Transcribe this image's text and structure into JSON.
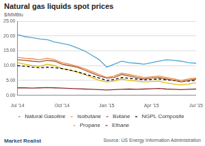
{
  "chart_data": {
    "type": "line",
    "title": "Natural gas liquids spot prices",
    "y_label": "$/MMBtu",
    "source": "Source: US Energy Information Administration",
    "logo_text": "Market Realist",
    "categories": [
      "Jul '14",
      null,
      null,
      null,
      null,
      null,
      "Oct '14",
      null,
      null,
      null,
      null,
      null,
      "Jan '15",
      null,
      null,
      null,
      null,
      null,
      "Apr '15",
      null,
      null,
      null,
      null,
      null,
      "Jul '15"
    ],
    "series": [
      {
        "name": "Natural Gasoline",
        "color": "#4fa3d1",
        "line_style": "solid",
        "values": [
          20.5,
          19.8,
          19.5,
          19.0,
          18.8,
          18.0,
          17.5,
          17.0,
          16.0,
          15.0,
          13.5,
          12.0,
          9.5,
          10.5,
          11.5,
          11.0,
          10.8,
          10.5,
          11.0,
          11.5,
          12.0,
          11.8,
          11.5,
          11.0,
          10.8
        ]
      },
      {
        "name": "Isobutane",
        "color": "#f0883a",
        "line_style": "solid",
        "values": [
          12.8,
          12.5,
          12.3,
          12.0,
          12.5,
          12.0,
          11.0,
          10.5,
          9.8,
          9.0,
          8.0,
          7.0,
          6.0,
          6.5,
          7.5,
          7.0,
          6.5,
          6.0,
          6.2,
          6.5,
          6.0,
          5.5,
          5.0,
          5.5,
          5.8
        ]
      },
      {
        "name": "Butane",
        "color": "#a0522d",
        "line_style": "solid",
        "values": [
          12.0,
          11.8,
          11.5,
          11.3,
          11.8,
          11.5,
          10.5,
          10.0,
          9.5,
          8.5,
          7.5,
          6.5,
          5.8,
          6.0,
          7.0,
          6.5,
          6.0,
          5.5,
          5.8,
          6.0,
          5.5,
          5.0,
          4.5,
          5.0,
          5.5
        ]
      },
      {
        "name": "NGPL Composite",
        "color": "#000000",
        "line_style": "dashed",
        "values": [
          10.0,
          9.8,
          9.5,
          9.3,
          9.5,
          9.3,
          9.0,
          8.5,
          8.0,
          7.2,
          6.5,
          5.8,
          5.0,
          5.3,
          6.0,
          5.7,
          5.5,
          5.2,
          5.3,
          5.5,
          5.2,
          5.0,
          4.6,
          4.8,
          5.0
        ]
      },
      {
        "name": "Propane",
        "color": "#e6b800",
        "line_style": "solid",
        "values": [
          11.0,
          10.5,
          10.0,
          9.8,
          10.5,
          10.0,
          9.0,
          8.5,
          7.8,
          7.0,
          6.0,
          5.0,
          4.5,
          4.8,
          5.5,
          5.0,
          4.8,
          4.5,
          4.6,
          4.8,
          4.2,
          3.8,
          3.5,
          3.8,
          4.2
        ]
      },
      {
        "name": "Ethane",
        "color": "#8b2a2a",
        "line_style": "solid",
        "values": [
          2.5,
          2.5,
          2.4,
          2.5,
          2.6,
          2.5,
          2.4,
          2.3,
          2.2,
          2.1,
          2.0,
          1.9,
          1.8,
          1.9,
          2.0,
          2.1,
          2.0,
          2.1,
          2.2,
          2.3,
          2.1,
          2.0,
          1.9,
          2.0,
          2.1
        ]
      }
    ],
    "ylim": [
      0,
      25
    ],
    "yticks": [
      {
        "value": 0,
        "label": "0.00"
      },
      {
        "value": 5,
        "label": "5.00"
      },
      {
        "value": 10,
        "label": "10.00"
      },
      {
        "value": 15,
        "label": "15.00"
      },
      {
        "value": 20,
        "label": "20.00"
      },
      {
        "value": 25,
        "label": "25.00"
      }
    ],
    "grid": true,
    "legend": "bottom"
  }
}
